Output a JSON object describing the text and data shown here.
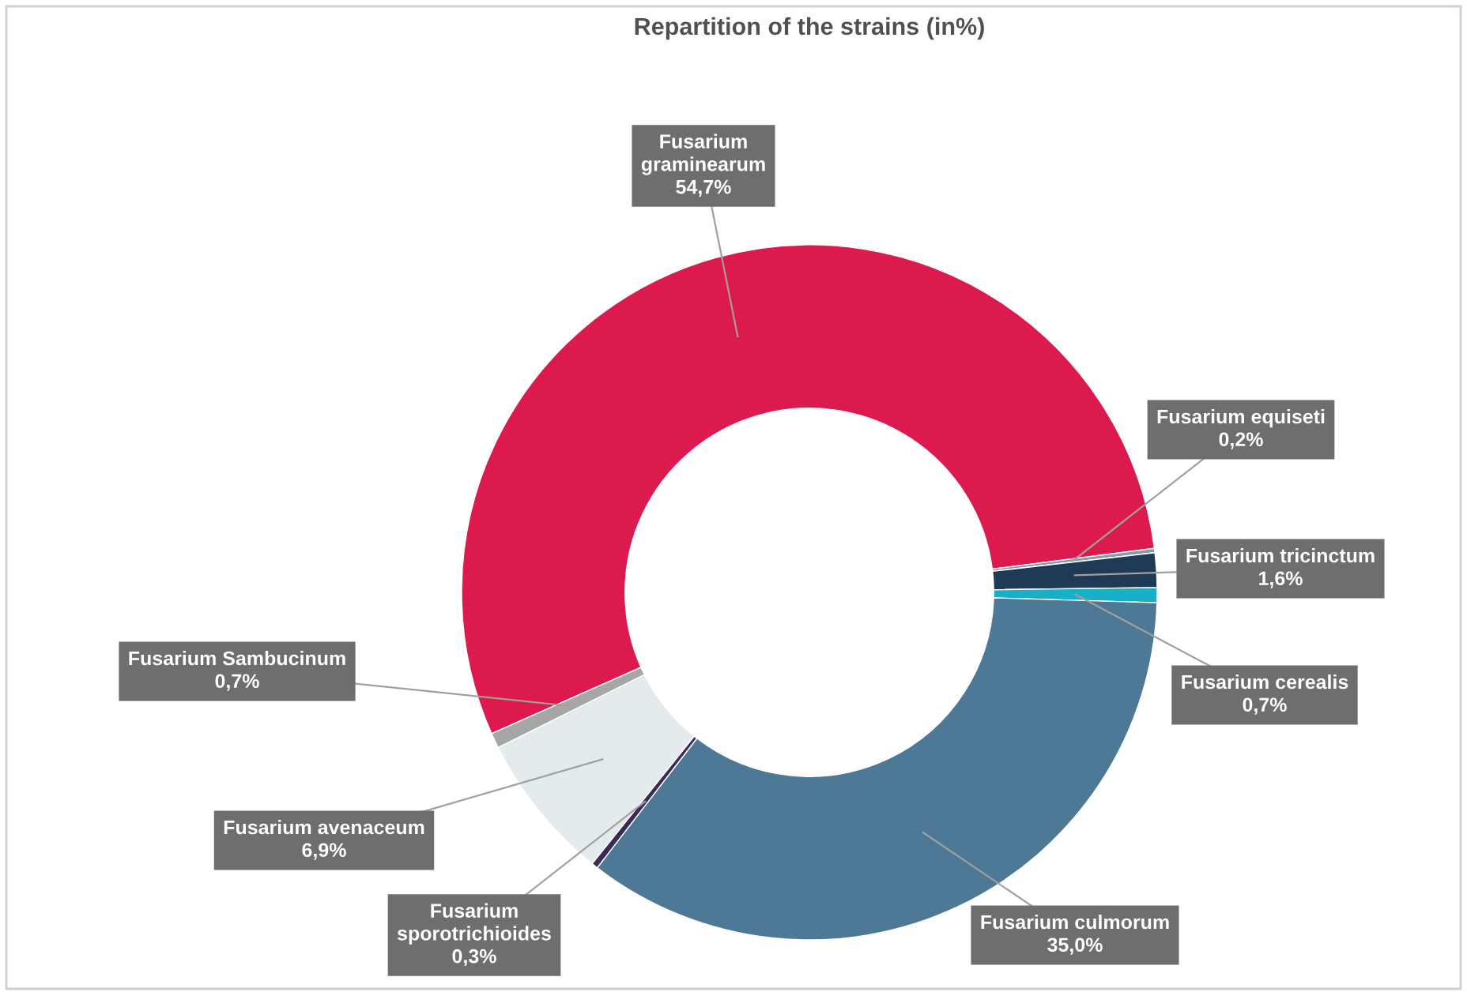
{
  "chart_data": {
    "type": "donut",
    "title": "Repartition of the strains (in%)",
    "categories": [
      "Fusarium graminearum",
      "Fusarium equiseti",
      "Fusarium tricinctum",
      "Fusarium cerealis",
      "Fusarium culmorum",
      "Fusarium sporotrichioides",
      "Fusarium avenaceum",
      "Fusarium Sambucinum"
    ],
    "values": [
      54.7,
      0.2,
      1.6,
      0.7,
      35.0,
      0.3,
      6.9,
      0.7
    ],
    "value_labels": [
      "54,7%",
      "0,2%",
      "1,6%",
      "0,7%",
      "35,0%",
      "0,3%",
      "6,9%",
      "0,7%"
    ],
    "colors": [
      "#dc1a4e",
      "#8a9aa8",
      "#1f3a55",
      "#17b0c8",
      "#4d7896",
      "#3a2a55",
      "#e4ebef",
      "#a6a6a6"
    ],
    "legend": false
  }
}
